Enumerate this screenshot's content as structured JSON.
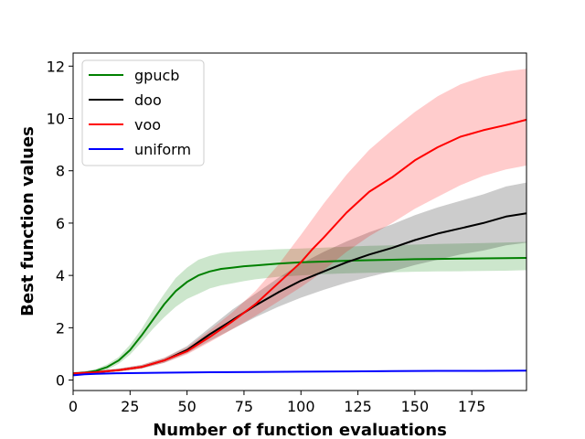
{
  "chart_data": {
    "type": "line",
    "title": "",
    "xlabel": "Number of function evaluations",
    "ylabel": "Best function values",
    "xlim": [
      0,
      199
    ],
    "ylim": [
      -0.4,
      12.5
    ],
    "xticks": [
      0,
      25,
      50,
      75,
      100,
      125,
      150,
      175
    ],
    "yticks": [
      0,
      2,
      4,
      6,
      8,
      10,
      12
    ],
    "grid": false,
    "legend_position": "top-left",
    "series": [
      {
        "name": "gpucb",
        "color": "#008000",
        "x": [
          0,
          5,
          10,
          15,
          20,
          25,
          30,
          35,
          40,
          45,
          50,
          55,
          60,
          65,
          70,
          75,
          80,
          90,
          100,
          110,
          120,
          130,
          140,
          150,
          160,
          170,
          180,
          190,
          199
        ],
        "y": [
          0.25,
          0.28,
          0.35,
          0.5,
          0.75,
          1.15,
          1.7,
          2.3,
          2.9,
          3.4,
          3.75,
          4.0,
          4.15,
          4.25,
          4.3,
          4.35,
          4.38,
          4.45,
          4.5,
          4.53,
          4.56,
          4.58,
          4.6,
          4.62,
          4.63,
          4.64,
          4.65,
          4.66,
          4.67
        ],
        "lower": [
          0.2,
          0.22,
          0.28,
          0.4,
          0.62,
          0.97,
          1.45,
          1.95,
          2.4,
          2.8,
          3.1,
          3.3,
          3.5,
          3.62,
          3.7,
          3.78,
          3.85,
          3.95,
          4.0,
          4.05,
          4.08,
          4.1,
          4.12,
          4.14,
          4.15,
          4.16,
          4.17,
          4.18,
          4.2
        ],
        "upper": [
          0.3,
          0.34,
          0.42,
          0.6,
          0.88,
          1.35,
          1.95,
          2.65,
          3.3,
          3.9,
          4.3,
          4.6,
          4.75,
          4.85,
          4.9,
          4.93,
          4.96,
          5.0,
          5.03,
          5.06,
          5.1,
          5.13,
          5.15,
          5.18,
          5.2,
          5.22,
          5.24,
          5.26,
          5.28
        ]
      },
      {
        "name": "doo",
        "color": "#000000",
        "x": [
          0,
          10,
          20,
          30,
          40,
          50,
          60,
          70,
          80,
          90,
          100,
          110,
          120,
          130,
          140,
          150,
          160,
          170,
          180,
          190,
          199
        ],
        "y": [
          0.25,
          0.3,
          0.38,
          0.5,
          0.75,
          1.15,
          1.75,
          2.3,
          2.85,
          3.35,
          3.8,
          4.15,
          4.5,
          4.8,
          5.05,
          5.35,
          5.6,
          5.8,
          6.0,
          6.25,
          6.37
        ],
        "lower": [
          0.2,
          0.25,
          0.33,
          0.44,
          0.66,
          1.02,
          1.5,
          1.95,
          2.4,
          2.8,
          3.15,
          3.45,
          3.72,
          3.95,
          4.15,
          4.4,
          4.6,
          4.8,
          4.95,
          5.15,
          5.25
        ],
        "upper": [
          0.3,
          0.35,
          0.44,
          0.58,
          0.85,
          1.3,
          2.0,
          2.7,
          3.3,
          3.9,
          4.45,
          4.9,
          5.3,
          5.65,
          5.95,
          6.3,
          6.6,
          6.85,
          7.1,
          7.4,
          7.55
        ]
      },
      {
        "name": "voo",
        "color": "#ff0000",
        "x": [
          0,
          10,
          20,
          30,
          40,
          50,
          60,
          70,
          80,
          90,
          100,
          105,
          110,
          120,
          130,
          140,
          150,
          160,
          170,
          180,
          190,
          199
        ],
        "y": [
          0.25,
          0.3,
          0.38,
          0.5,
          0.75,
          1.1,
          1.65,
          2.25,
          2.9,
          3.7,
          4.5,
          5.0,
          5.45,
          6.4,
          7.2,
          7.75,
          8.4,
          8.9,
          9.3,
          9.55,
          9.75,
          9.95
        ],
        "lower": [
          0.2,
          0.25,
          0.33,
          0.44,
          0.66,
          0.98,
          1.45,
          1.95,
          2.45,
          3.0,
          3.55,
          3.85,
          4.2,
          4.9,
          5.5,
          6.0,
          6.55,
          7.0,
          7.45,
          7.8,
          8.05,
          8.2
        ],
        "upper": [
          0.3,
          0.35,
          0.44,
          0.58,
          0.85,
          1.25,
          1.9,
          2.6,
          3.4,
          4.4,
          5.55,
          6.15,
          6.75,
          7.85,
          8.8,
          9.55,
          10.25,
          10.85,
          11.3,
          11.6,
          11.8,
          11.9
        ]
      },
      {
        "name": "uniform",
        "color": "#0000ff",
        "x": [
          0,
          5,
          10,
          20,
          40,
          60,
          80,
          100,
          120,
          140,
          160,
          180,
          199
        ],
        "y": [
          0.18,
          0.22,
          0.24,
          0.26,
          0.28,
          0.3,
          0.31,
          0.32,
          0.33,
          0.34,
          0.35,
          0.35,
          0.36
        ],
        "lower": [
          0.16,
          0.2,
          0.22,
          0.24,
          0.26,
          0.28,
          0.29,
          0.3,
          0.31,
          0.32,
          0.33,
          0.33,
          0.34
        ],
        "upper": [
          0.2,
          0.24,
          0.26,
          0.28,
          0.3,
          0.32,
          0.33,
          0.34,
          0.35,
          0.36,
          0.37,
          0.37,
          0.38
        ]
      }
    ]
  }
}
